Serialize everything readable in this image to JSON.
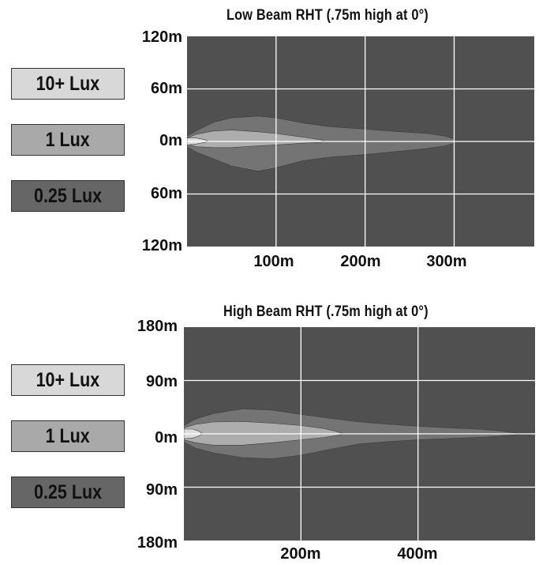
{
  "chart_data": [
    {
      "type": "area",
      "title": "Low Beam RHT (.75m high at 0°)",
      "xlim": [
        0,
        390
      ],
      "ylim": [
        -120,
        120
      ],
      "x_ticks": [
        100,
        200,
        300
      ],
      "x_tick_labels": [
        "100m",
        "200m",
        "300m"
      ],
      "y_ticks": [
        120,
        60,
        0,
        -60,
        -120
      ],
      "y_tick_labels": [
        "120m",
        "60m",
        "0m",
        "60m",
        "120m"
      ],
      "grid": true,
      "legend_position": "left",
      "legend": [
        {
          "label": "10+ Lux",
          "color": "#d8d8d8"
        },
        {
          "label": "1 Lux",
          "color": "#a9a9a9"
        },
        {
          "label": "0.25 Lux",
          "color": "#666666"
        }
      ],
      "series": [
        {
          "name": "0.25 Lux",
          "color": "#747474",
          "upper": [
            [
              0,
              6
            ],
            [
              10,
              12
            ],
            [
              30,
              22
            ],
            [
              50,
              27
            ],
            [
              80,
              29
            ],
            [
              100,
              27
            ],
            [
              130,
              21
            ],
            [
              160,
              17
            ],
            [
              200,
              14
            ],
            [
              240,
              11
            ],
            [
              270,
              9
            ],
            [
              290,
              6
            ],
            [
              300,
              3
            ],
            [
              300,
              0
            ]
          ],
          "lower": [
            [
              0,
              -6
            ],
            [
              10,
              -12
            ],
            [
              30,
              -20
            ],
            [
              50,
              -28
            ],
            [
              80,
              -34
            ],
            [
              100,
              -30
            ],
            [
              130,
              -22
            ],
            [
              160,
              -18
            ],
            [
              200,
              -15
            ],
            [
              240,
              -11
            ],
            [
              270,
              -8
            ],
            [
              290,
              -5
            ],
            [
              300,
              -2
            ],
            [
              300,
              0
            ]
          ]
        },
        {
          "name": "1 Lux",
          "color": "#adadad",
          "upper": [
            [
              0,
              4
            ],
            [
              10,
              8
            ],
            [
              30,
              12
            ],
            [
              50,
              13
            ],
            [
              80,
              11
            ],
            [
              100,
              9
            ],
            [
              130,
              5
            ],
            [
              150,
              2
            ],
            [
              155,
              0
            ]
          ],
          "lower": [
            [
              0,
              -3
            ],
            [
              10,
              -6
            ],
            [
              30,
              -7
            ],
            [
              50,
              -7
            ],
            [
              80,
              -5
            ],
            [
              100,
              -4
            ],
            [
              130,
              -2
            ],
            [
              150,
              -1
            ],
            [
              155,
              0
            ]
          ]
        },
        {
          "name": "10+ Lux",
          "color": "#dcdcdc",
          "upper": [
            [
              0,
              4
            ],
            [
              10,
              4
            ],
            [
              20,
              2
            ],
            [
              25,
              0
            ]
          ],
          "lower": [
            [
              0,
              -4
            ],
            [
              10,
              -3
            ],
            [
              20,
              -1
            ],
            [
              25,
              0
            ]
          ]
        }
      ]
    },
    {
      "type": "area",
      "title": "High Beam RHT (.75m high at 0°)",
      "xlim": [
        0,
        600
      ],
      "ylim": [
        -180,
        180
      ],
      "x_ticks": [
        200,
        400
      ],
      "x_tick_labels": [
        "200m",
        "400m"
      ],
      "y_ticks": [
        180,
        90,
        0,
        -90,
        -180
      ],
      "y_tick_labels": [
        "180m",
        "90m",
        "0m",
        "90m",
        "180m"
      ],
      "grid": true,
      "legend_position": "left",
      "legend": [
        {
          "label": "10+ Lux",
          "color": "#d8d8d8"
        },
        {
          "label": "1 Lux",
          "color": "#a9a9a9"
        },
        {
          "label": "0.25 Lux",
          "color": "#666666"
        }
      ],
      "series": [
        {
          "name": "0.25 Lux",
          "color": "#747474",
          "upper": [
            [
              0,
              14
            ],
            [
              20,
              25
            ],
            [
              50,
              34
            ],
            [
              100,
              42
            ],
            [
              150,
              40
            ],
            [
              200,
              33
            ],
            [
              250,
              26
            ],
            [
              300,
              20
            ],
            [
              350,
              16
            ],
            [
              400,
              13
            ],
            [
              450,
              10
            ],
            [
              500,
              8
            ],
            [
              540,
              5
            ],
            [
              570,
              1
            ],
            [
              575,
              0
            ]
          ],
          "lower": [
            [
              0,
              -14
            ],
            [
              20,
              -24
            ],
            [
              50,
              -32
            ],
            [
              100,
              -40
            ],
            [
              150,
              -42
            ],
            [
              200,
              -36
            ],
            [
              250,
              -26
            ],
            [
              300,
              -17
            ],
            [
              350,
              -13
            ],
            [
              400,
              -10
            ],
            [
              450,
              -8
            ],
            [
              500,
              -6
            ],
            [
              540,
              -4
            ],
            [
              570,
              -1
            ],
            [
              575,
              0
            ]
          ]
        },
        {
          "name": "1 Lux",
          "color": "#adadad",
          "upper": [
            [
              0,
              10
            ],
            [
              20,
              16
            ],
            [
              50,
              20
            ],
            [
              100,
              21
            ],
            [
              150,
              18
            ],
            [
              200,
              14
            ],
            [
              240,
              9
            ],
            [
              260,
              4
            ],
            [
              270,
              1
            ],
            [
              272,
              0
            ]
          ],
          "lower": [
            [
              0,
              -10
            ],
            [
              20,
              -15
            ],
            [
              50,
              -19
            ],
            [
              100,
              -19
            ],
            [
              150,
              -15
            ],
            [
              200,
              -10
            ],
            [
              240,
              -6
            ],
            [
              260,
              -3
            ],
            [
              270,
              -1
            ],
            [
              272,
              0
            ]
          ]
        },
        {
          "name": "10+ Lux",
          "color": "#dcdcdc",
          "upper": [
            [
              0,
              8
            ],
            [
              15,
              8
            ],
            [
              25,
              5
            ],
            [
              32,
              0
            ]
          ],
          "lower": [
            [
              0,
              -8
            ],
            [
              15,
              -7
            ],
            [
              25,
              -4
            ],
            [
              32,
              0
            ]
          ]
        }
      ]
    }
  ]
}
